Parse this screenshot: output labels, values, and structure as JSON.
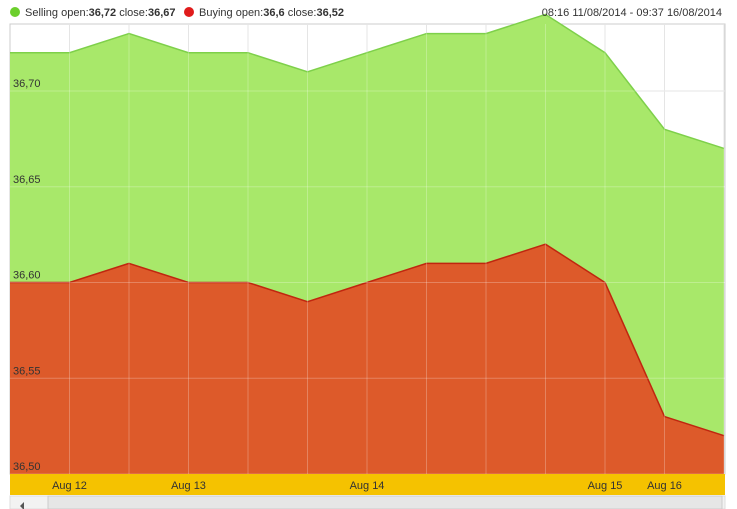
{
  "legend": {
    "selling": {
      "label": "Selling",
      "open_label": "open:",
      "open": "36,72",
      "close_label": "close:",
      "close": "36,67",
      "color": "#6ccf2c"
    },
    "buying": {
      "label": "Buying",
      "open_label": "open:",
      "open": "36,6",
      "close_label": "close:",
      "close": "36,52",
      "color": "#e01b1b"
    }
  },
  "date_range": "08:16 11/08/2014 - 09:37 16/08/2014",
  "colors": {
    "selling_fill": "#a8e86a",
    "selling_line": "#7ed04a",
    "buying_fill": "#dd5a2a",
    "buying_line": "#c0260f",
    "axis_band": "#f5c200",
    "grid": "#dddddd"
  },
  "chart_data": {
    "type": "area",
    "ylim": [
      36.5,
      36.735
    ],
    "yticks": [
      "36,70",
      "36,65",
      "36,60",
      "36,55",
      "36,50"
    ],
    "ytick_values": [
      36.7,
      36.65,
      36.6,
      36.55,
      36.5
    ],
    "xticks": [
      "Aug 12",
      "Aug 13",
      "Aug 14",
      "Aug 15",
      "Aug 16"
    ],
    "xtick_index": [
      1,
      3,
      6,
      10,
      11
    ],
    "series": [
      {
        "name": "Selling",
        "values": [
          36.72,
          36.72,
          36.73,
          36.72,
          36.72,
          36.71,
          36.72,
          36.73,
          36.73,
          36.74,
          36.72,
          36.68,
          36.67
        ]
      },
      {
        "name": "Buying",
        "values": [
          36.6,
          36.6,
          36.61,
          36.6,
          36.6,
          36.59,
          36.6,
          36.61,
          36.61,
          36.62,
          36.6,
          36.53,
          36.52
        ]
      }
    ]
  }
}
